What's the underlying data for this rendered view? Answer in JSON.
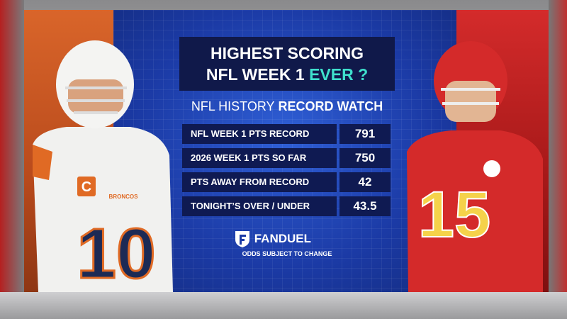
{
  "title": {
    "line1": "HIGHEST SCORING",
    "line2": "NFL WEEK 1",
    "highlight": "EVER ?"
  },
  "subtitle": {
    "plain": "NFL HISTORY",
    "bold": "RECORD WATCH"
  },
  "table": {
    "rows": [
      [
        "NFL WEEK 1 PTS RECORD",
        "791"
      ],
      [
        "2026 WEEK 1 PTS SO FAR",
        "750"
      ],
      [
        "PTS AWAY FROM RECORD",
        "42"
      ],
      [
        "TONIGHT’S OVER / UNDER",
        "43.5"
      ]
    ]
  },
  "sponsor": {
    "name": "FANDUEL",
    "note": "ODDS SUBJECT TO CHANGE"
  },
  "players": [
    {
      "team": "BRONCOS",
      "captain": "C",
      "number": "10"
    },
    {
      "number": "15"
    }
  ]
}
